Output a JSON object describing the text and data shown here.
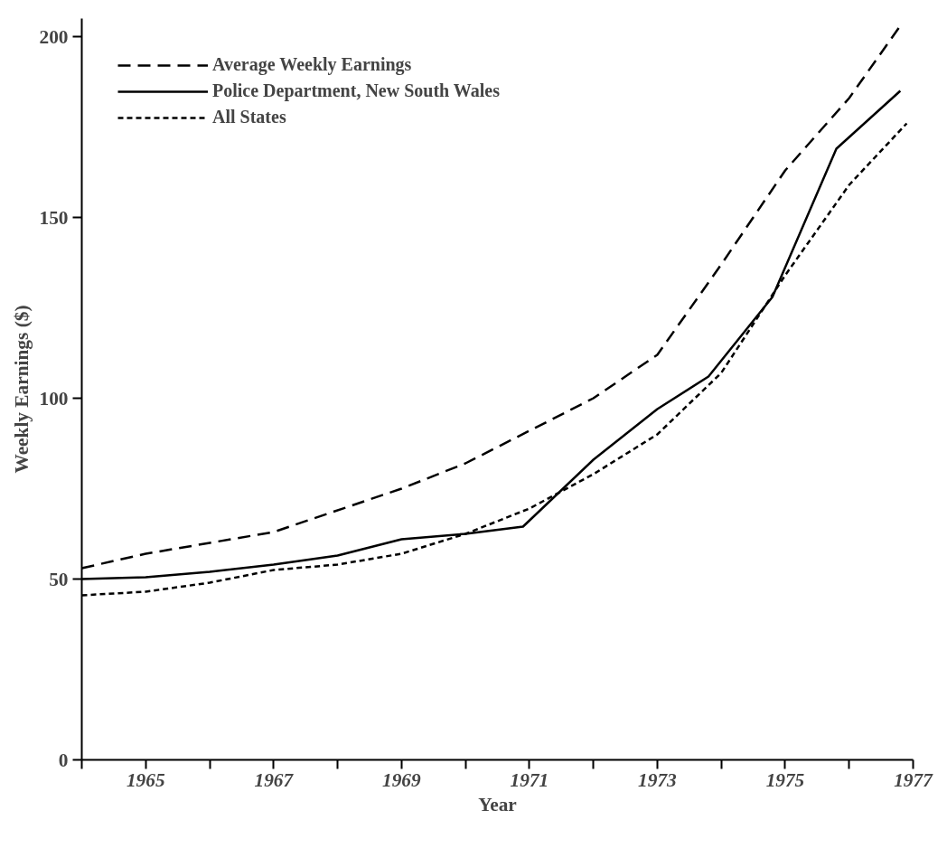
{
  "chart_data": {
    "type": "line",
    "xlabel": "Year",
    "ylabel": "Weekly Earnings ($)",
    "xlim": [
      1964,
      1977
    ],
    "ylim": [
      0,
      205
    ],
    "xticks": [
      {
        "value": 1964,
        "label": null
      },
      1965,
      {
        "value": 1966,
        "label": null
      },
      1967,
      {
        "value": 1968,
        "label": null
      },
      1969,
      {
        "value": 1970,
        "label": null
      },
      1971,
      {
        "value": 1972,
        "label": null
      },
      1973,
      {
        "value": 1974,
        "label": null
      },
      1975,
      {
        "value": 1976,
        "label": null
      },
      1977
    ],
    "yticks": [
      0,
      50,
      100,
      150,
      200
    ],
    "grid": false,
    "legend": "top left",
    "marker": "none",
    "series": [
      {
        "name": "Average Weekly Earnings",
        "color": "#000000",
        "line_style": "dashed",
        "x": [
          1964,
          1965,
          1967,
          1969,
          1970,
          1971,
          1972,
          1973,
          1974,
          1975,
          1976,
          1976.8
        ],
        "values": [
          53,
          57,
          63,
          75,
          82,
          91,
          100,
          112,
          137,
          163,
          183,
          203
        ]
      },
      {
        "name": "Police Department, New South Wales",
        "color": "#000000",
        "line_style": "solid",
        "x": [
          1964,
          1965,
          1966,
          1967,
          1968,
          1969,
          1970,
          1970.9,
          1972,
          1973,
          1973.8,
          1974.8,
          1975.8,
          1976.8
        ],
        "values": [
          50,
          50.5,
          52,
          54,
          56.5,
          61,
          62.5,
          64.5,
          83,
          97,
          106,
          128,
          169,
          185
        ]
      },
      {
        "name": "All States",
        "color": "#000000",
        "line_style": "dotted",
        "x": [
          1964,
          1965,
          1966,
          1967,
          1968,
          1969,
          1970,
          1971,
          1972,
          1973,
          1974,
          1975,
          1976,
          1976.9
        ],
        "values": [
          45.5,
          46.5,
          49,
          52.5,
          54,
          57,
          62.5,
          69.5,
          79,
          90,
          107,
          134,
          159,
          176
        ]
      }
    ]
  }
}
